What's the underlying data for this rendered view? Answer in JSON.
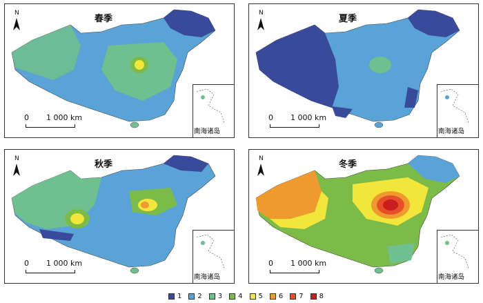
{
  "panels": [
    {
      "title": "春季",
      "inset_label": "南海诸岛",
      "north": "N",
      "scale_zero": "0",
      "scale_dist": "1 000 km"
    },
    {
      "title": "夏季",
      "inset_label": "南海诸岛",
      "north": "N",
      "scale_zero": "0",
      "scale_dist": "1 000 km"
    },
    {
      "title": "秋季",
      "inset_label": "南海诸岛",
      "north": "N",
      "scale_zero": "0",
      "scale_dist": "1 000 km"
    },
    {
      "title": "冬季",
      "inset_label": "南海诸岛",
      "north": "N",
      "scale_zero": "0",
      "scale_dist": "1 000 km"
    }
  ],
  "legend": [
    {
      "label": "1",
      "color": "#3a4a9a"
    },
    {
      "label": "2",
      "color": "#5aa3d6"
    },
    {
      "label": "3",
      "color": "#6fbf8f"
    },
    {
      "label": "4",
      "color": "#7dbb48"
    },
    {
      "label": "5",
      "color": "#f2e63a"
    },
    {
      "label": "6",
      "color": "#ef9a2e"
    },
    {
      "label": "7",
      "color": "#e5502b"
    },
    {
      "label": "8",
      "color": "#c81e1e"
    }
  ]
}
